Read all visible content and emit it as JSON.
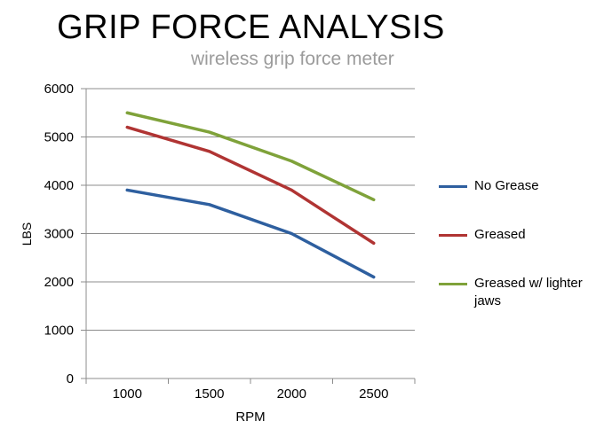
{
  "chart_data": {
    "type": "line",
    "title": "GRIP FORCE ANALYSIS",
    "subtitle": "wireless grip force meter",
    "xlabel": "RPM",
    "ylabel": "LBS",
    "categories": [
      "1000",
      "1500",
      "2000",
      "2500"
    ],
    "ylim": [
      0,
      6000
    ],
    "yticks": [
      "0",
      "1000",
      "2000",
      "3000",
      "4000",
      "5000",
      "6000"
    ],
    "grid": true,
    "legend_position": "right",
    "series": [
      {
        "name": "No Grease",
        "color": "#2e5f9f",
        "values": [
          3900,
          3600,
          3000,
          2100
        ]
      },
      {
        "name": "Greased",
        "color": "#b03433",
        "values": [
          5200,
          4700,
          3900,
          2800
        ]
      },
      {
        "name": "Greased w/ lighter jaws",
        "color": "#7fa23a",
        "values": [
          5500,
          5100,
          4500,
          3700
        ]
      }
    ]
  }
}
